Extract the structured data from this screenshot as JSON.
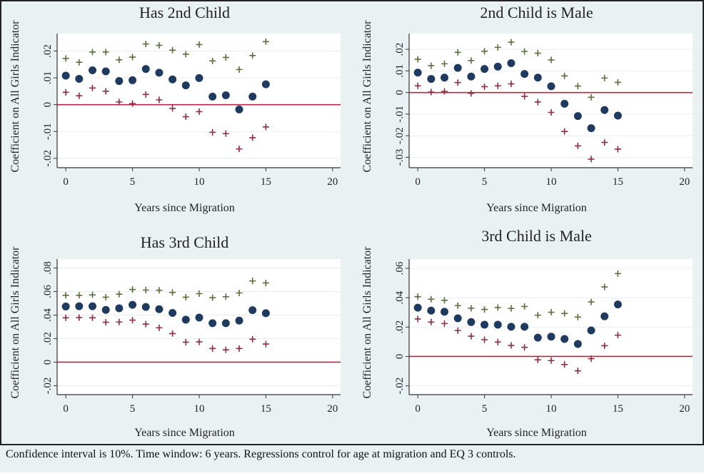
{
  "footnote": "Confidence interval is 10%. Time window: 6 years. Regressions control for age at migration and EQ 3 controls.",
  "colors": {
    "point": "#1f3a5f",
    "upper": "#5b6e3c",
    "lower": "#8e2b44",
    "zero_line": "#b3283f",
    "background": "#eaf1f3",
    "plot_bg": "#ffffff"
  },
  "chart_data": [
    {
      "type": "scatter",
      "title": "Has 2nd Child",
      "xlabel": "Years since Migration",
      "ylabel": "Coefficient on All Girls Indicator",
      "xlim": [
        -0.65,
        20.6
      ],
      "ylim": [
        -0.0235,
        0.0265
      ],
      "xticks": [
        0,
        5,
        10,
        15,
        20
      ],
      "xtick_labels": [
        "0",
        "5",
        "10",
        "15",
        "20"
      ],
      "yticks": [
        -0.02,
        -0.01,
        0,
        0.01,
        0.02
      ],
      "ytick_labels": [
        "-.02",
        "-.01",
        "0",
        ".01",
        ".02"
      ],
      "reference_line": 0,
      "x": [
        0,
        1,
        2,
        3,
        4,
        5,
        6,
        7,
        8,
        9,
        10,
        11,
        12,
        13,
        14,
        15
      ],
      "series": [
        {
          "name": "coefficient",
          "values": [
            0.0108,
            0.0096,
            0.0128,
            0.0124,
            0.0088,
            0.0091,
            0.0133,
            0.0119,
            0.0094,
            0.0072,
            0.0099,
            0.003,
            0.0035,
            -0.0018,
            0.003,
            0.0076
          ]
        },
        {
          "name": "upper CI",
          "values": [
            0.0172,
            0.0158,
            0.0196,
            0.0196,
            0.0167,
            0.0177,
            0.0226,
            0.0221,
            0.0203,
            0.0188,
            0.0224,
            0.0163,
            0.0176,
            0.0131,
            0.0183,
            0.0235
          ]
        },
        {
          "name": "lower CI",
          "values": [
            0.0046,
            0.0033,
            0.0062,
            0.005,
            0.001,
            0.0004,
            0.0038,
            0.0018,
            -0.0014,
            -0.0045,
            -0.0026,
            -0.0103,
            -0.0108,
            -0.0165,
            -0.0123,
            -0.0083
          ]
        }
      ]
    },
    {
      "type": "scatter",
      "title": "2nd Child is Male",
      "xlabel": "Years since Migration",
      "ylabel": "Coefficient on All Girls Indicator",
      "xlim": [
        -0.65,
        20.6
      ],
      "ylim": [
        -0.0348,
        0.0273
      ],
      "xticks": [
        0,
        5,
        10,
        15,
        20
      ],
      "xtick_labels": [
        "0",
        "5",
        "10",
        "15",
        "20"
      ],
      "yticks": [
        -0.03,
        -0.02,
        -0.01,
        0,
        0.01,
        0.02
      ],
      "ytick_labels": [
        "-.03",
        "-.02",
        "-.01",
        "0",
        ".01",
        ".02"
      ],
      "reference_line": 0,
      "x": [
        0,
        1,
        2,
        3,
        4,
        5,
        6,
        7,
        8,
        9,
        10,
        11,
        12,
        13,
        14,
        15
      ],
      "series": [
        {
          "name": "coefficient",
          "values": [
            0.0092,
            0.0063,
            0.0069,
            0.0114,
            0.0074,
            0.0109,
            0.012,
            0.0136,
            0.0086,
            0.0069,
            0.0029,
            -0.0052,
            -0.0109,
            -0.0165,
            -0.0081,
            -0.0107
          ]
        },
        {
          "name": "upper CI",
          "values": [
            0.0154,
            0.0124,
            0.0133,
            0.0186,
            0.0148,
            0.0191,
            0.0209,
            0.0233,
            0.019,
            0.0182,
            0.0151,
            0.0077,
            0.003,
            -0.0022,
            0.0067,
            0.0047
          ]
        },
        {
          "name": "lower CI",
          "values": [
            0.0031,
            0.0002,
            0.0005,
            0.0046,
            -0.0004,
            0.0027,
            0.0031,
            0.004,
            -0.0018,
            -0.0044,
            -0.0092,
            -0.018,
            -0.0247,
            -0.0308,
            -0.0231,
            -0.0262
          ]
        }
      ]
    },
    {
      "type": "scatter",
      "title": "Has 3rd Child",
      "xlabel": "Years since Migration",
      "ylabel": "Coefficient on All Girls Indicator",
      "xlim": [
        -0.65,
        20.6
      ],
      "ylim": [
        -0.0276,
        0.0876
      ],
      "xticks": [
        0,
        5,
        10,
        15,
        20
      ],
      "xtick_labels": [
        "0",
        "5",
        "10",
        "15",
        "20"
      ],
      "yticks": [
        -0.02,
        0,
        0.02,
        0.04,
        0.06,
        0.08
      ],
      "ytick_labels": [
        "-.02",
        "0",
        ".02",
        ".04",
        ".06",
        ".08"
      ],
      "reference_line": 0,
      "x": [
        0,
        1,
        2,
        3,
        4,
        5,
        6,
        7,
        8,
        9,
        10,
        11,
        12,
        13,
        14,
        15
      ],
      "series": [
        {
          "name": "coefficient",
          "values": [
            0.0473,
            0.0475,
            0.0475,
            0.0444,
            0.0458,
            0.0487,
            0.0469,
            0.045,
            0.0418,
            0.0361,
            0.0379,
            0.0331,
            0.0331,
            0.0353,
            0.0442,
            0.0416
          ]
        },
        {
          "name": "upper CI",
          "values": [
            0.0568,
            0.0568,
            0.0572,
            0.0552,
            0.0578,
            0.0617,
            0.0613,
            0.0611,
            0.0592,
            0.0552,
            0.0582,
            0.0548,
            0.0556,
            0.0588,
            0.069,
            0.0673
          ]
        },
        {
          "name": "lower CI",
          "values": [
            0.0377,
            0.0379,
            0.0377,
            0.0339,
            0.0341,
            0.0357,
            0.0323,
            0.0292,
            0.0243,
            0.017,
            0.0172,
            0.0116,
            0.0105,
            0.0116,
            0.0195,
            0.0154
          ]
        }
      ]
    },
    {
      "type": "scatter",
      "title": "3rd Child is Male",
      "xlabel": "Years since Migration",
      "ylabel": "Coefficient on All Girls Indicator",
      "xlim": [
        -0.65,
        20.6
      ],
      "ylim": [
        -0.026,
        0.0663
      ],
      "xticks": [
        0,
        5,
        10,
        15,
        20
      ],
      "xtick_labels": [
        "0",
        "5",
        "10",
        "15",
        "20"
      ],
      "yticks": [
        -0.02,
        0,
        0.02,
        0.04,
        0.06
      ],
      "ytick_labels": [
        "-.02",
        "0",
        ".02",
        ".04",
        ".06"
      ],
      "reference_line": 0,
      "x": [
        0,
        1,
        2,
        3,
        4,
        5,
        6,
        7,
        8,
        9,
        10,
        11,
        12,
        13,
        14,
        15
      ],
      "series": [
        {
          "name": "coefficient",
          "values": [
            0.0332,
            0.0312,
            0.0304,
            0.026,
            0.0234,
            0.0216,
            0.0216,
            0.0202,
            0.0202,
            0.0128,
            0.0135,
            0.0119,
            0.0085,
            0.0177,
            0.0273,
            0.0354
          ]
        },
        {
          "name": "upper CI",
          "values": [
            0.0407,
            0.039,
            0.0382,
            0.0346,
            0.0328,
            0.032,
            0.0333,
            0.0327,
            0.034,
            0.0281,
            0.0301,
            0.0293,
            0.0268,
            0.0371,
            0.0473,
            0.0564
          ]
        },
        {
          "name": "lower CI",
          "values": [
            0.0255,
            0.0234,
            0.0224,
            0.0176,
            0.0138,
            0.0114,
            0.0098,
            0.0075,
            0.0062,
            -0.0023,
            -0.0028,
            -0.0055,
            -0.0098,
            -0.0015,
            0.0073,
            0.0145
          ]
        }
      ]
    }
  ]
}
